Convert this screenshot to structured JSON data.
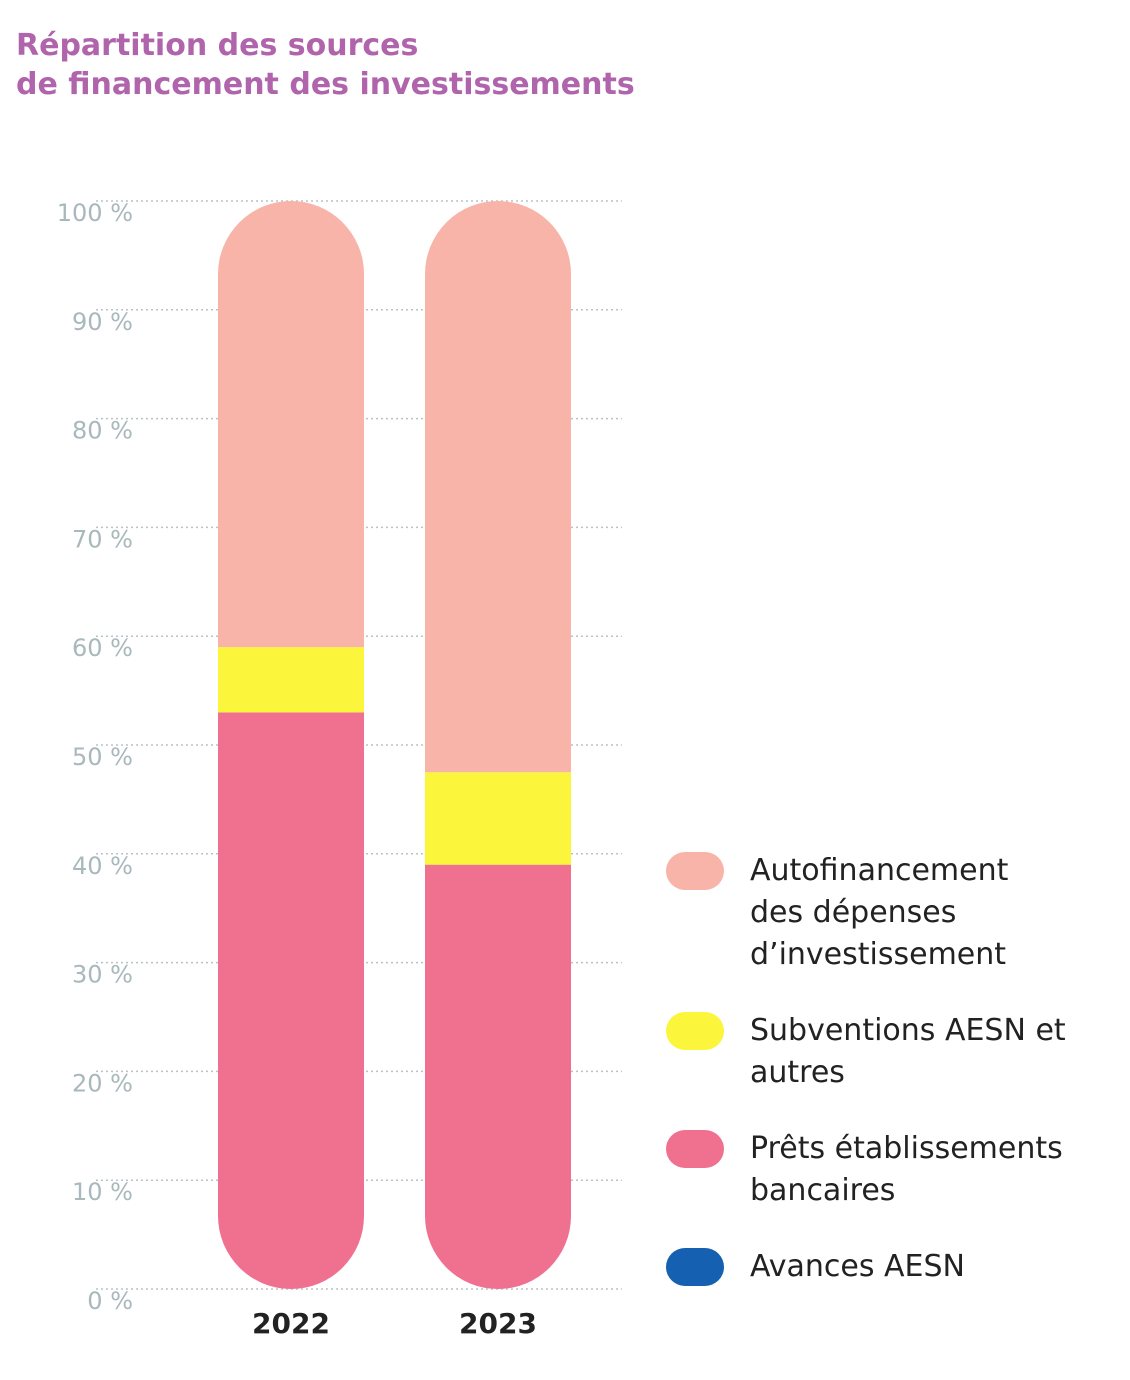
{
  "chart_data": {
    "type": "bar",
    "stacked": true,
    "title": "Répartition des sources de financement des investissements",
    "title_lines": [
      "Répartition des sources",
      "de financement des investissements"
    ],
    "categories": [
      "2022",
      "2023"
    ],
    "ylim": [
      0,
      100
    ],
    "yticks": [
      0,
      10,
      20,
      30,
      40,
      50,
      60,
      70,
      80,
      90,
      100
    ],
    "ytick_labels": [
      "0 %",
      "10 %",
      "20 %",
      "30 %",
      "40 %",
      "50 %",
      "60 %",
      "70 %",
      "80 %",
      "90 %",
      "100 %"
    ],
    "grid": true,
    "legend_position": "right",
    "series": [
      {
        "name": "Prêts établissements bancaires",
        "legend_label": "Prêts établissements\nbancaires",
        "color": "#f07090",
        "values": [
          53,
          39
        ]
      },
      {
        "name": "Subventions AESN et autres",
        "legend_label": "Subventions AESN et\nautres",
        "color": "#fbf53b",
        "values": [
          6,
          8.5
        ]
      },
      {
        "name": "Autofinancement des dépenses d’investissement",
        "legend_label": "Autofinancement\ndes dépenses\nd’investissement",
        "color": "#f8b4a8",
        "values": [
          41,
          52.5
        ]
      },
      {
        "name": "Avances AESN",
        "legend_label": "Avances AESN",
        "color": "#1560b0",
        "values": [
          0,
          0
        ]
      }
    ],
    "legend_order": [
      2,
      1,
      0,
      3
    ]
  }
}
